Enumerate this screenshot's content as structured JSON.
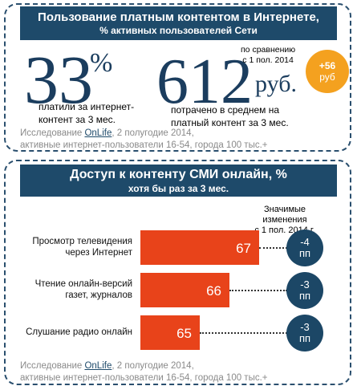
{
  "top": {
    "title": "Пользование платным контентом в Интернете,",
    "subtitle": "% активных пользователей Сети",
    "stat1": {
      "value": 33,
      "unit": "%",
      "text": "платили за  интернет-\nконтент за 3 мес."
    },
    "stat2": {
      "value": 612,
      "unit": "руб.",
      "text": "потрачено в среднем на\nплатный контент за 3 мес."
    },
    "comparison": {
      "label": "по сравнению\nс 1 пол. 2014",
      "value": "+56",
      "unit": "руб"
    },
    "source": {
      "prefix": "Исследование ",
      "link": "OnLife",
      "rest": ", 2 полугодие 2014,\nактивные интернет-пользователи 16-54, города 100 тыс.+"
    }
  },
  "chart_data": {
    "type": "bar",
    "orientation": "horizontal",
    "title": "Доступ к контенту СМИ онлайн, %",
    "subtitle": "хотя бы раз за 3 мес.",
    "categories": [
      "Просмотр телевидения\nчерез Интернет",
      "Чтение онлайн-версий\nгазет, журналов",
      "Слушание радио онлайн"
    ],
    "values": [
      67,
      66,
      65
    ],
    "color": "#e8431a",
    "xlim": [
      63,
      68
    ],
    "changes": {
      "title": "Значимые изменения\nс 1 пол. 2014 г.",
      "values": [
        -4,
        -3,
        -3
      ],
      "unit": "пп",
      "color": "#1c4766"
    },
    "source": {
      "prefix": "Исследование ",
      "link": "OnLife",
      "rest": ", 2 полугодие 2014,\nактивные интернет-пользователи 16-54, города 100 тыс.+"
    }
  }
}
